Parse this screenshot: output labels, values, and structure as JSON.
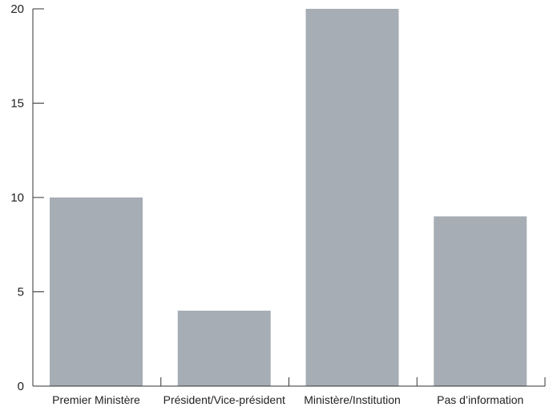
{
  "chart_data": {
    "type": "bar",
    "categories": [
      "Premier Ministère",
      "Président/Vice-président",
      "Ministère/Institution",
      "Pas d’information"
    ],
    "values": [
      10,
      4,
      20,
      9
    ],
    "title": "",
    "xlabel": "",
    "ylabel": "",
    "ylim": [
      0,
      20
    ],
    "yticks": [
      0,
      5,
      10,
      15,
      20
    ],
    "grid": false,
    "legend": "none",
    "bar_color": "#a7adb4",
    "axis_color": "#333333"
  }
}
